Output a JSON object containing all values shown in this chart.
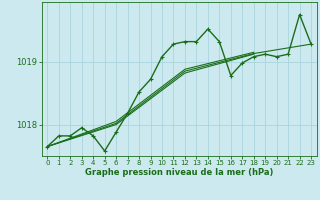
{
  "xlabel": "Graphe pression niveau de la mer (hPa)",
  "background_color": "#cce9f0",
  "grid_color": "#aad4dc",
  "line_color": "#1a6e1a",
  "marker": "+",
  "x_ticks": [
    0,
    1,
    2,
    3,
    4,
    5,
    6,
    7,
    8,
    9,
    10,
    11,
    12,
    13,
    14,
    15,
    16,
    17,
    18,
    19,
    20,
    21,
    22,
    23
  ],
  "y_ticks": [
    1018,
    1019
  ],
  "ylim": [
    1017.5,
    1019.95
  ],
  "xlim": [
    -0.5,
    23.5
  ],
  "series": [
    {
      "x": [
        0,
        1,
        2,
        3,
        4,
        5,
        6,
        7,
        8,
        9,
        10,
        11,
        12,
        13,
        14,
        15,
        16,
        17,
        18,
        19,
        20,
        21,
        22,
        23
      ],
      "y": [
        1017.65,
        1017.82,
        1017.82,
        1017.95,
        1017.82,
        1017.58,
        1017.88,
        1018.18,
        1018.52,
        1018.72,
        1019.08,
        1019.28,
        1019.32,
        1019.32,
        1019.52,
        1019.32,
        1018.78,
        1018.98,
        1019.08,
        1019.12,
        1019.08,
        1019.12,
        1019.75,
        1019.28
      ]
    },
    {
      "x": [
        0,
        6,
        12,
        18
      ],
      "y": [
        1017.65,
        1018.0,
        1018.82,
        1019.12
      ]
    },
    {
      "x": [
        0,
        6,
        12,
        18
      ],
      "y": [
        1017.65,
        1018.05,
        1018.88,
        1019.15
      ]
    },
    {
      "x": [
        0,
        6,
        12,
        18,
        23
      ],
      "y": [
        1017.65,
        1018.02,
        1018.85,
        1019.13,
        1019.28
      ]
    }
  ],
  "linewidths": [
    1.0,
    0.8,
    0.8,
    0.8
  ],
  "with_markers": [
    true,
    false,
    false,
    false
  ],
  "marker_size": 3,
  "xlabel_fontsize": 6,
  "tick_fontsize": 5,
  "ytick_fontsize": 6
}
